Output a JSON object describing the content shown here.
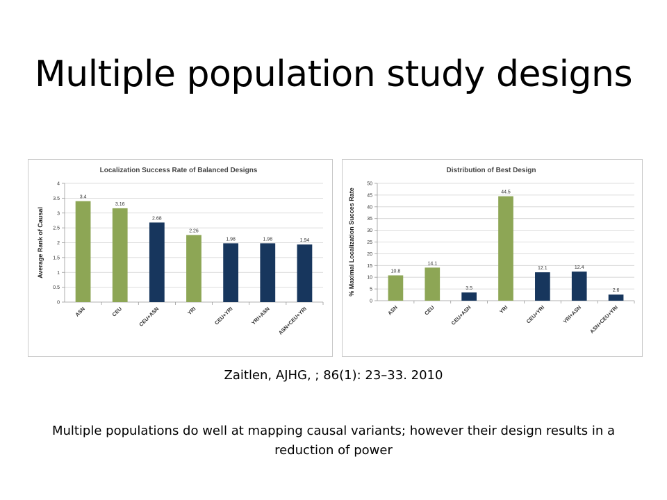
{
  "title": "Multiple population study designs",
  "citation": "Zaitlen, AJHG, ; 86(1): 23–33. 2010",
  "caption": "Multiple populations do well at mapping causal variants; however their design results in a reduction of power",
  "colors": {
    "green": "#8da655",
    "navy": "#17365d",
    "grid": "#d0d0d0"
  },
  "chart_data": [
    {
      "type": "bar",
      "title": "Localization Success Rate of Balanced Designs",
      "xlabel": "",
      "ylabel": "Average Rank of Causal",
      "categories": [
        "ASN",
        "CEU",
        "CEU+ASN",
        "YRI",
        "CEU+YRI",
        "YRI+ASN",
        "ASN+CEU+YRI"
      ],
      "values": [
        3.4,
        3.16,
        2.68,
        2.26,
        1.98,
        1.98,
        1.94
      ],
      "data_labels": [
        "3.4",
        "3.16",
        "2.68",
        "2.26",
        "1.98",
        "1.98",
        "1.94"
      ],
      "bar_colors": [
        "#8da655",
        "#8da655",
        "#17365d",
        "#8da655",
        "#17365d",
        "#17365d",
        "#17365d"
      ],
      "ylim": [
        0,
        4
      ],
      "yticks": [
        "0",
        "0.5",
        "1",
        "1.5",
        "2",
        "2.5",
        "3",
        "3.5",
        "4"
      ],
      "grid": true
    },
    {
      "type": "bar",
      "title": "Distribution of Best Design",
      "xlabel": "",
      "ylabel": "% Maximal Localization Succes Rate",
      "categories": [
        "ASN",
        "CEU",
        "CEU+ASN",
        "YRI",
        "CEU+YRI",
        "YRI+ASN",
        "ASN+CEU+YRI"
      ],
      "values": [
        10.8,
        14.1,
        3.5,
        44.5,
        12.1,
        12.4,
        2.6
      ],
      "data_labels": [
        "10.8",
        "14.1",
        "3.5",
        "44.5",
        "12.1",
        "12.4",
        "2.6"
      ],
      "bar_colors": [
        "#8da655",
        "#8da655",
        "#17365d",
        "#8da655",
        "#17365d",
        "#17365d",
        "#17365d"
      ],
      "ylim": [
        0,
        50
      ],
      "yticks": [
        "0",
        "5",
        "10",
        "15",
        "20",
        "25",
        "30",
        "35",
        "40",
        "45",
        "50"
      ],
      "grid": true
    }
  ]
}
